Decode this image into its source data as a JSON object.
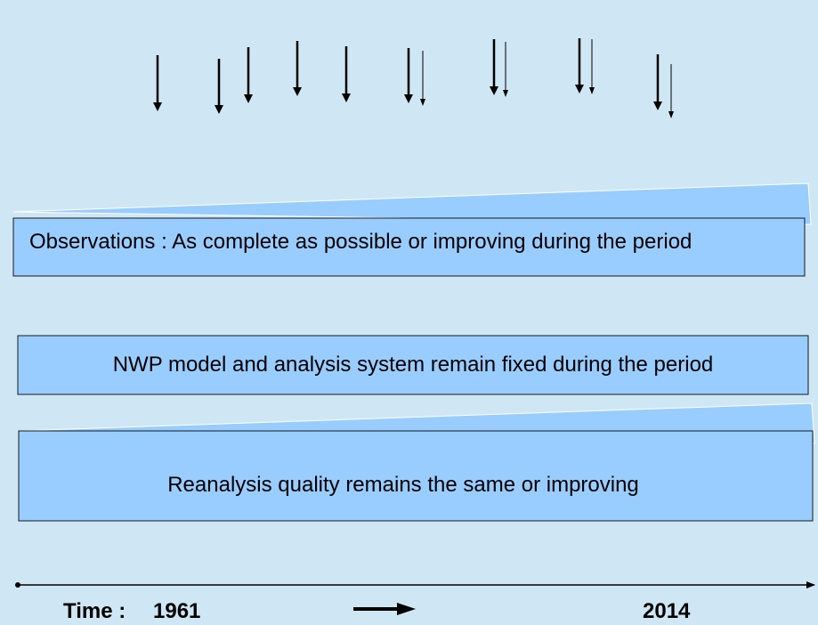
{
  "observations": {
    "label": "Observations : As complete as possible or improving during the period"
  },
  "model": {
    "label": "NWP model and analysis system remain fixed during the period"
  },
  "reanalysis": {
    "label": "Reanalysis quality remains the same or improving"
  },
  "timeline": {
    "label": "Time :",
    "start": "1961",
    "end": "2014"
  },
  "colors": {
    "background": "#cfe6f4",
    "box": "#99ccff",
    "border": "#1a1a1a"
  }
}
